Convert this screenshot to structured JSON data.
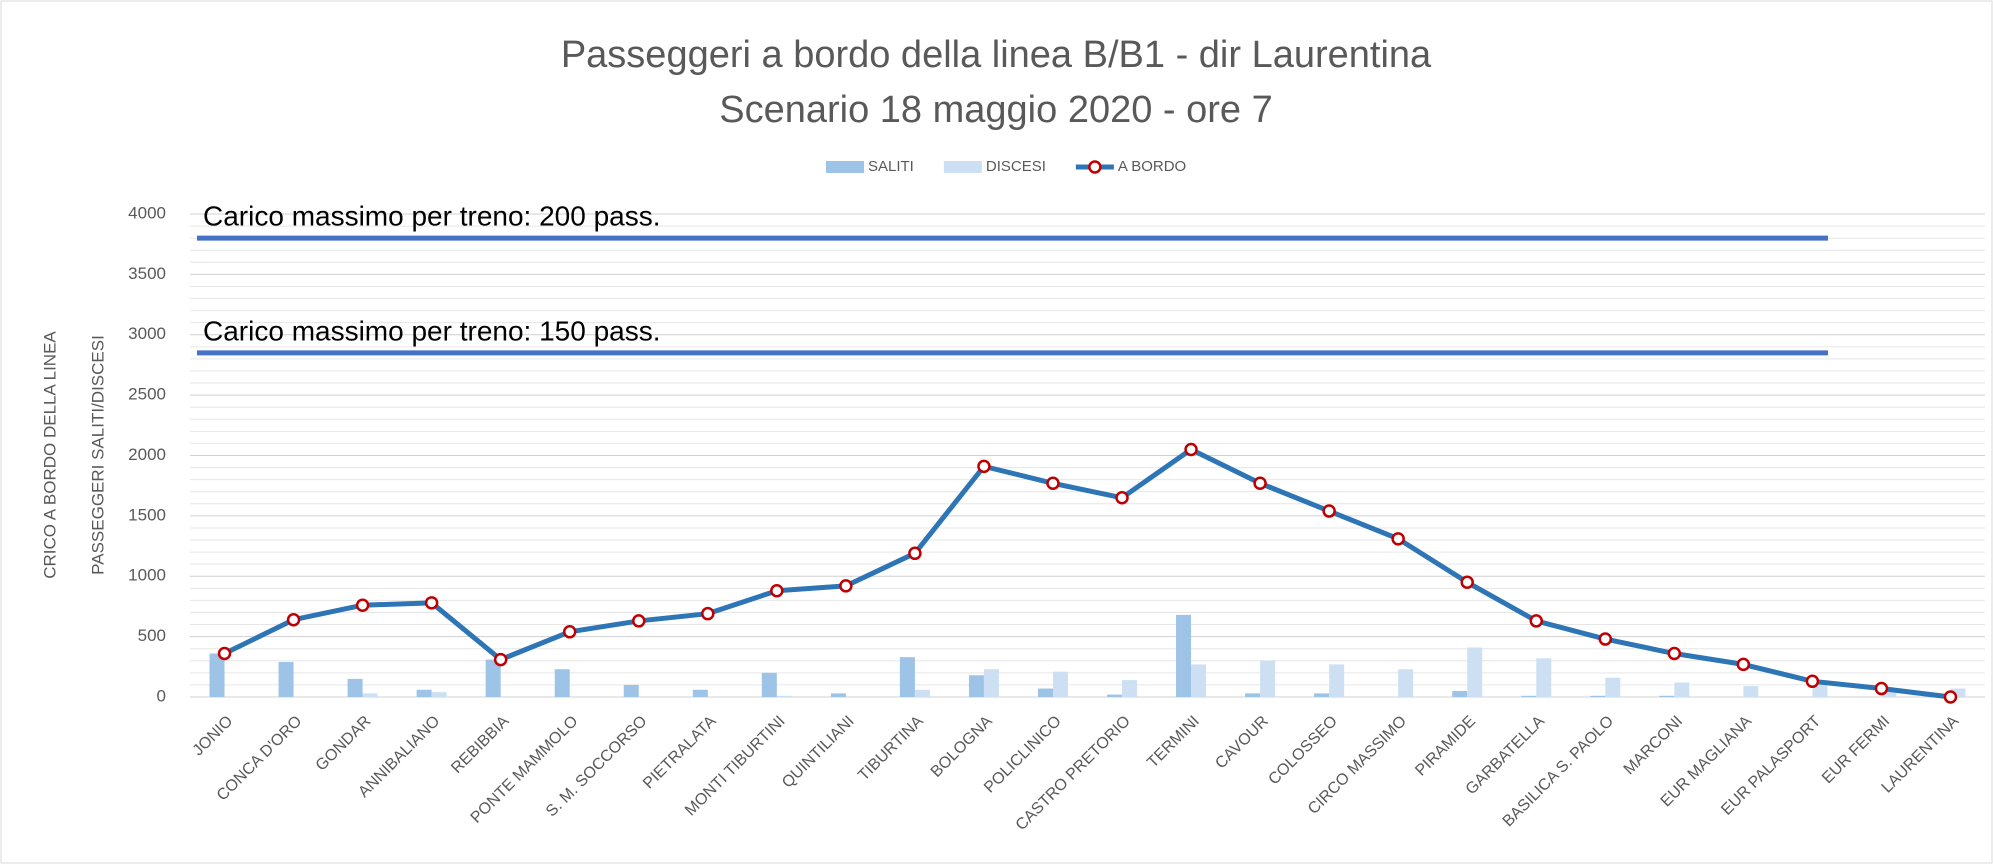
{
  "chart_data": {
    "type": "bar_line",
    "title": "Passeggeri a bordo della linea B/B1 - dir Laurentina",
    "subtitle": "Scenario 18 maggio 2020 - ore 7",
    "ylabel": "CRICO A BORDO DELLA LINEA",
    "ylabel2": "PASSEGGERI SALITI/DISCESI",
    "categories": [
      "JONIO",
      "CONCA D'ORO",
      "GONDAR",
      "ANNIBALIANO",
      "REBIBBIA",
      "PONTE MAMMOLO",
      "S. M. SOCCORSO",
      "PIETRALATA",
      "MONTI TIBURTINI",
      "QUINTILIANI",
      "TIBURTINA",
      "BOLOGNA",
      "POLICLINICO",
      "CASTRO PRETORIO",
      "TERMINI",
      "CAVOUR",
      "COLOSSEO",
      "CIRCO MASSIMO",
      "PIRAMIDE",
      "GARBATELLA",
      "BASILICA S. PAOLO",
      "MARCONI",
      "EUR MAGLIANA",
      "EUR PALASPORT",
      "EUR FERMI",
      "LAURENTINA"
    ],
    "series": [
      {
        "name": "SALITI",
        "kind": "bar",
        "color": "#9dc3e6",
        "values": [
          360,
          290,
          150,
          60,
          310,
          230,
          100,
          60,
          200,
          30,
          330,
          180,
          70,
          20,
          680,
          30,
          30,
          0,
          50,
          10,
          10,
          10,
          0,
          0,
          0,
          0
        ]
      },
      {
        "name": "DISCESI",
        "kind": "bar",
        "color": "#cde0f3",
        "values": [
          0,
          0,
          30,
          40,
          0,
          0,
          0,
          0,
          10,
          0,
          60,
          230,
          210,
          140,
          270,
          300,
          270,
          230,
          410,
          320,
          160,
          120,
          90,
          140,
          60,
          70
        ]
      },
      {
        "name": "A BORDO",
        "kind": "line",
        "color": "#2e75b6",
        "marker_stroke": "#c00000",
        "values": [
          360,
          640,
          760,
          780,
          310,
          540,
          630,
          690,
          880,
          920,
          1190,
          1910,
          1770,
          1650,
          2050,
          1770,
          1540,
          1310,
          950,
          630,
          480,
          360,
          270,
          130,
          70,
          0
        ]
      }
    ],
    "reference_lines": [
      {
        "label": "Carico massimo per treno: 200 pass.",
        "value": 3800,
        "color": "#4472c4"
      },
      {
        "label": "Carico massimo per treno: 150 pass.",
        "value": 2850,
        "color": "#4472c4"
      }
    ],
    "ylim": [
      0,
      4000
    ],
    "yticks": [
      0,
      500,
      1000,
      1500,
      2000,
      2500,
      3000,
      3500,
      4000
    ],
    "minor_yticks": [
      100,
      200,
      300,
      400,
      600,
      700,
      800,
      900,
      1100,
      1200,
      1300,
      1400,
      1600,
      1700,
      1800,
      1900,
      2100,
      2200,
      2300,
      2400,
      2600,
      2700,
      2800,
      2900,
      3100,
      3200,
      3300,
      3400,
      3600,
      3700,
      3800,
      3900
    ],
    "grid": true,
    "legend": "top"
  }
}
